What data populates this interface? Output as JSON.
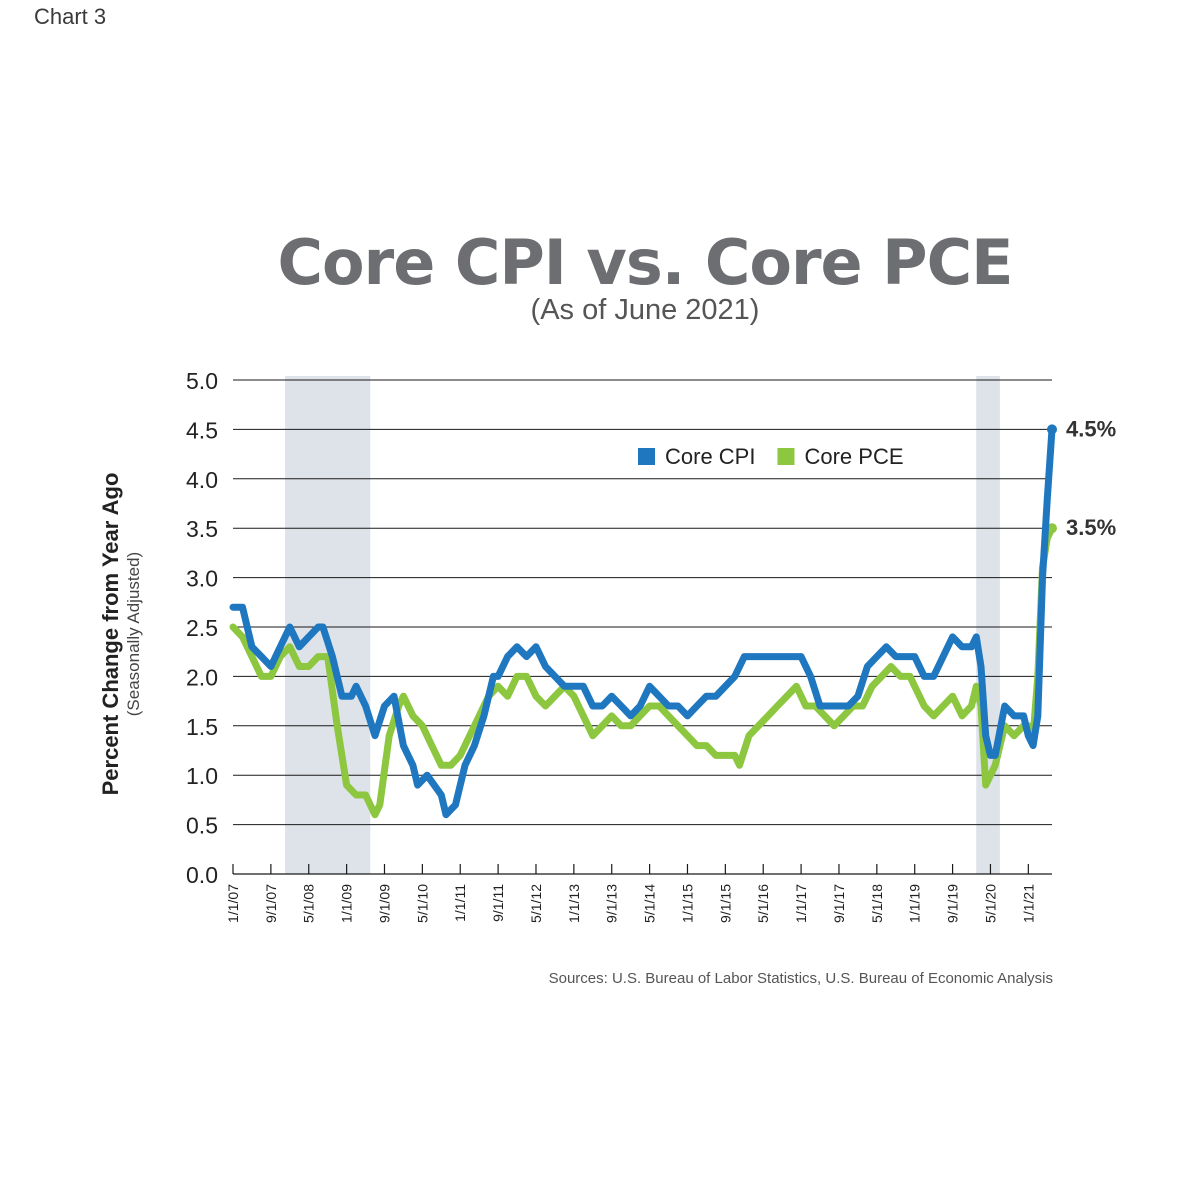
{
  "header": {
    "chart_label": "Chart 3"
  },
  "chart_data": {
    "type": "line",
    "title": "Core CPI vs. Core PCE",
    "subtitle": "(As of June 2021)",
    "ylabel": "Percent Change from Year Ago",
    "ylabel_sub": "(Seasonally Adjusted)",
    "xlabel": "",
    "ylim": [
      0,
      5
    ],
    "yticks": [
      "0.0",
      "0.5",
      "1.0",
      "1.5",
      "2.0",
      "2.5",
      "3.0",
      "3.5",
      "4.0",
      "4.5",
      "5.0"
    ],
    "xlim": [
      "2007-01",
      "2021-06"
    ],
    "xticks": [
      {
        "label": "1/1/07",
        "date": "2007-01"
      },
      {
        "label": "9/1/07",
        "date": "2007-09"
      },
      {
        "label": "5/1/08",
        "date": "2008-05"
      },
      {
        "label": "1/1/09",
        "date": "2009-01"
      },
      {
        "label": "9/1/09",
        "date": "2009-09"
      },
      {
        "label": "5/1/10",
        "date": "2010-05"
      },
      {
        "label": "1/1/11",
        "date": "2011-01"
      },
      {
        "label": "9/1/11",
        "date": "2011-09"
      },
      {
        "label": "5/1/12",
        "date": "2012-05"
      },
      {
        "label": "1/1/13",
        "date": "2013-01"
      },
      {
        "label": "9/1/13",
        "date": "2013-09"
      },
      {
        "label": "5/1/14",
        "date": "2014-05"
      },
      {
        "label": "1/1/15",
        "date": "2015-01"
      },
      {
        "label": "9/1/15",
        "date": "2015-09"
      },
      {
        "label": "5/1/16",
        "date": "2016-05"
      },
      {
        "label": "1/1/17",
        "date": "2017-01"
      },
      {
        "label": "9/1/17",
        "date": "2017-09"
      },
      {
        "label": "5/1/18",
        "date": "2018-05"
      },
      {
        "label": "1/1/19",
        "date": "2019-01"
      },
      {
        "label": "9/1/19",
        "date": "2019-09"
      },
      {
        "label": "5/1/20",
        "date": "2020-05"
      },
      {
        "label": "1/1/21",
        "date": "2021-01"
      }
    ],
    "recessions": [
      {
        "start": "2007-12",
        "end": "2009-06"
      },
      {
        "start": "2020-02",
        "end": "2020-07"
      }
    ],
    "grid": true,
    "legend_position": "top-right",
    "series": [
      {
        "name": "Core CPI",
        "color": "#1f77bf",
        "end_label": "4.5%",
        "points": [
          [
            "2007-01",
            2.7
          ],
          [
            "2007-03",
            2.7
          ],
          [
            "2007-05",
            2.3
          ],
          [
            "2007-07",
            2.2
          ],
          [
            "2007-09",
            2.1
          ],
          [
            "2007-11",
            2.3
          ],
          [
            "2008-01",
            2.5
          ],
          [
            "2008-03",
            2.3
          ],
          [
            "2008-05",
            2.4
          ],
          [
            "2008-07",
            2.5
          ],
          [
            "2008-08",
            2.5
          ],
          [
            "2008-10",
            2.2
          ],
          [
            "2008-12",
            1.8
          ],
          [
            "2009-02",
            1.8
          ],
          [
            "2009-03",
            1.9
          ],
          [
            "2009-05",
            1.7
          ],
          [
            "2009-07",
            1.4
          ],
          [
            "2009-09",
            1.7
          ],
          [
            "2009-11",
            1.8
          ],
          [
            "2010-01",
            1.3
          ],
          [
            "2010-03",
            1.1
          ],
          [
            "2010-04",
            0.9
          ],
          [
            "2010-06",
            1.0
          ],
          [
            "2010-09",
            0.8
          ],
          [
            "2010-10",
            0.6
          ],
          [
            "2010-12",
            0.7
          ],
          [
            "2011-02",
            1.1
          ],
          [
            "2011-04",
            1.3
          ],
          [
            "2011-06",
            1.6
          ],
          [
            "2011-08",
            2.0
          ],
          [
            "2011-09",
            2.0
          ],
          [
            "2011-11",
            2.2
          ],
          [
            "2012-01",
            2.3
          ],
          [
            "2012-03",
            2.2
          ],
          [
            "2012-05",
            2.3
          ],
          [
            "2012-07",
            2.1
          ],
          [
            "2012-09",
            2.0
          ],
          [
            "2012-11",
            1.9
          ],
          [
            "2013-01",
            1.9
          ],
          [
            "2013-03",
            1.9
          ],
          [
            "2013-05",
            1.7
          ],
          [
            "2013-07",
            1.7
          ],
          [
            "2013-09",
            1.8
          ],
          [
            "2013-11",
            1.7
          ],
          [
            "2014-01",
            1.6
          ],
          [
            "2014-03",
            1.7
          ],
          [
            "2014-05",
            1.9
          ],
          [
            "2014-07",
            1.8
          ],
          [
            "2014-09",
            1.7
          ],
          [
            "2014-11",
            1.7
          ],
          [
            "2015-01",
            1.6
          ],
          [
            "2015-03",
            1.7
          ],
          [
            "2015-05",
            1.8
          ],
          [
            "2015-07",
            1.8
          ],
          [
            "2015-09",
            1.9
          ],
          [
            "2015-11",
            2.0
          ],
          [
            "2016-01",
            2.2
          ],
          [
            "2016-03",
            2.2
          ],
          [
            "2016-05",
            2.2
          ],
          [
            "2016-07",
            2.2
          ],
          [
            "2016-09",
            2.2
          ],
          [
            "2016-11",
            2.2
          ],
          [
            "2017-01",
            2.2
          ],
          [
            "2017-03",
            2.0
          ],
          [
            "2017-05",
            1.7
          ],
          [
            "2017-07",
            1.7
          ],
          [
            "2017-09",
            1.7
          ],
          [
            "2017-11",
            1.7
          ],
          [
            "2018-01",
            1.8
          ],
          [
            "2018-03",
            2.1
          ],
          [
            "2018-05",
            2.2
          ],
          [
            "2018-07",
            2.3
          ],
          [
            "2018-09",
            2.2
          ],
          [
            "2018-11",
            2.2
          ],
          [
            "2019-01",
            2.2
          ],
          [
            "2019-03",
            2.0
          ],
          [
            "2019-05",
            2.0
          ],
          [
            "2019-07",
            2.2
          ],
          [
            "2019-09",
            2.4
          ],
          [
            "2019-11",
            2.3
          ],
          [
            "2020-01",
            2.3
          ],
          [
            "2020-02",
            2.4
          ],
          [
            "2020-03",
            2.1
          ],
          [
            "2020-04",
            1.4
          ],
          [
            "2020-05",
            1.2
          ],
          [
            "2020-06",
            1.2
          ],
          [
            "2020-08",
            1.7
          ],
          [
            "2020-10",
            1.6
          ],
          [
            "2020-12",
            1.6
          ],
          [
            "2021-01",
            1.4
          ],
          [
            "2021-02",
            1.3
          ],
          [
            "2021-03",
            1.6
          ],
          [
            "2021-04",
            3.0
          ],
          [
            "2021-05",
            3.8
          ],
          [
            "2021-06",
            4.5
          ]
        ]
      },
      {
        "name": "Core PCE",
        "color": "#8dc63f",
        "end_label": "3.5%",
        "points": [
          [
            "2007-01",
            2.5
          ],
          [
            "2007-03",
            2.4
          ],
          [
            "2007-05",
            2.2
          ],
          [
            "2007-07",
            2.0
          ],
          [
            "2007-09",
            2.0
          ],
          [
            "2007-11",
            2.2
          ],
          [
            "2008-01",
            2.3
          ],
          [
            "2008-03",
            2.1
          ],
          [
            "2008-05",
            2.1
          ],
          [
            "2008-07",
            2.2
          ],
          [
            "2008-09",
            2.2
          ],
          [
            "2008-11",
            1.5
          ],
          [
            "2009-01",
            0.9
          ],
          [
            "2009-03",
            0.8
          ],
          [
            "2009-05",
            0.8
          ],
          [
            "2009-07",
            0.6
          ],
          [
            "2009-08",
            0.7
          ],
          [
            "2009-10",
            1.4
          ],
          [
            "2009-12",
            1.7
          ],
          [
            "2010-01",
            1.8
          ],
          [
            "2010-03",
            1.6
          ],
          [
            "2010-05",
            1.5
          ],
          [
            "2010-07",
            1.3
          ],
          [
            "2010-09",
            1.1
          ],
          [
            "2010-11",
            1.1
          ],
          [
            "2011-01",
            1.2
          ],
          [
            "2011-03",
            1.4
          ],
          [
            "2011-05",
            1.6
          ],
          [
            "2011-07",
            1.8
          ],
          [
            "2011-09",
            1.9
          ],
          [
            "2011-11",
            1.8
          ],
          [
            "2012-01",
            2.0
          ],
          [
            "2012-03",
            2.0
          ],
          [
            "2012-05",
            1.8
          ],
          [
            "2012-07",
            1.7
          ],
          [
            "2012-09",
            1.8
          ],
          [
            "2012-11",
            1.9
          ],
          [
            "2013-01",
            1.8
          ],
          [
            "2013-03",
            1.6
          ],
          [
            "2013-05",
            1.4
          ],
          [
            "2013-07",
            1.5
          ],
          [
            "2013-09",
            1.6
          ],
          [
            "2013-11",
            1.5
          ],
          [
            "2014-01",
            1.5
          ],
          [
            "2014-03",
            1.6
          ],
          [
            "2014-05",
            1.7
          ],
          [
            "2014-07",
            1.7
          ],
          [
            "2014-09",
            1.6
          ],
          [
            "2014-11",
            1.5
          ],
          [
            "2015-01",
            1.4
          ],
          [
            "2015-03",
            1.3
          ],
          [
            "2015-05",
            1.3
          ],
          [
            "2015-07",
            1.2
          ],
          [
            "2015-09",
            1.2
          ],
          [
            "2015-11",
            1.2
          ],
          [
            "2015-12",
            1.1
          ],
          [
            "2016-02",
            1.4
          ],
          [
            "2016-04",
            1.5
          ],
          [
            "2016-06",
            1.6
          ],
          [
            "2016-08",
            1.7
          ],
          [
            "2016-10",
            1.8
          ],
          [
            "2016-12",
            1.9
          ],
          [
            "2017-02",
            1.7
          ],
          [
            "2017-04",
            1.7
          ],
          [
            "2017-06",
            1.6
          ],
          [
            "2017-08",
            1.5
          ],
          [
            "2017-10",
            1.6
          ],
          [
            "2017-12",
            1.7
          ],
          [
            "2018-02",
            1.7
          ],
          [
            "2018-04",
            1.9
          ],
          [
            "2018-06",
            2.0
          ],
          [
            "2018-08",
            2.1
          ],
          [
            "2018-10",
            2.0
          ],
          [
            "2018-12",
            2.0
          ],
          [
            "2019-01",
            1.9
          ],
          [
            "2019-03",
            1.7
          ],
          [
            "2019-05",
            1.6
          ],
          [
            "2019-07",
            1.7
          ],
          [
            "2019-09",
            1.8
          ],
          [
            "2019-11",
            1.6
          ],
          [
            "2020-01",
            1.7
          ],
          [
            "2020-02",
            1.9
          ],
          [
            "2020-03",
            1.7
          ],
          [
            "2020-04",
            0.9
          ],
          [
            "2020-06",
            1.1
          ],
          [
            "2020-08",
            1.5
          ],
          [
            "2020-10",
            1.4
          ],
          [
            "2020-12",
            1.5
          ],
          [
            "2021-01",
            1.5
          ],
          [
            "2021-02",
            1.4
          ],
          [
            "2021-03",
            2.0
          ],
          [
            "2021-04",
            3.1
          ],
          [
            "2021-05",
            3.4
          ],
          [
            "2021-06",
            3.5
          ]
        ]
      }
    ],
    "source": "Sources: U.S. Bureau of Labor Statistics, U.S. Bureau of Economic Analysis"
  }
}
